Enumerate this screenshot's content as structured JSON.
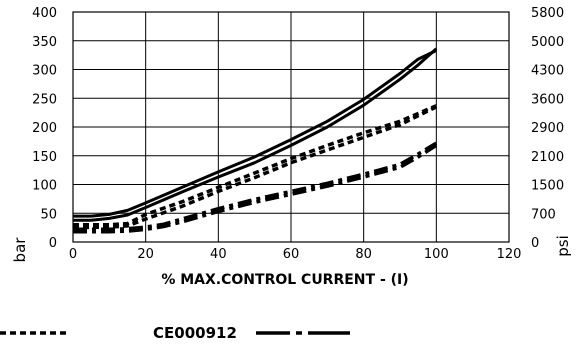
{
  "chart_data": {
    "type": "line",
    "xlabel": "% MAX.CONTROL CURRENT - (I)",
    "ylabel_left": "bar",
    "ylabel_right": "psi",
    "xlim": [
      0,
      120
    ],
    "ylim_left": [
      0,
      400
    ],
    "x_ticks": [
      "0",
      "20",
      "40",
      "60",
      "80",
      "100",
      "120"
    ],
    "y_ticks_left": [
      "0",
      "50",
      "100",
      "150",
      "200",
      "250",
      "300",
      "350",
      "400"
    ],
    "y_ticks_right": [
      "0",
      "700",
      "1500",
      "2100",
      "2900",
      "3600",
      "4300",
      "5000",
      "5800"
    ],
    "grid": true,
    "series": [
      {
        "style": "solid",
        "x": [
          0,
          5,
          10,
          15,
          20,
          30,
          40,
          50,
          60,
          70,
          80,
          90,
          95,
          100
        ],
        "y": [
          45,
          45,
          48,
          55,
          68,
          95,
          122,
          148,
          178,
          210,
          248,
          293,
          318,
          333
        ]
      },
      {
        "style": "solid",
        "x": [
          0,
          5,
          10,
          15,
          20,
          30,
          40,
          50,
          60,
          70,
          80,
          90,
          95,
          100
        ],
        "y": [
          38,
          38,
          41,
          47,
          60,
          87,
          113,
          138,
          168,
          200,
          238,
          283,
          308,
          336
        ]
      },
      {
        "style": "dashed",
        "x": [
          0,
          10,
          15,
          20,
          30,
          40,
          50,
          60,
          70,
          80,
          90,
          100
        ],
        "y": [
          30,
          30,
          32,
          48,
          70,
          95,
          120,
          145,
          168,
          190,
          210,
          237
        ]
      },
      {
        "style": "dashed",
        "x": [
          0,
          10,
          15,
          20,
          30,
          40,
          50,
          60,
          70,
          80,
          90,
          100
        ],
        "y": [
          25,
          26,
          28,
          40,
          62,
          88,
          112,
          138,
          160,
          182,
          204,
          235
        ]
      },
      {
        "style": "dashdot",
        "x": [
          0,
          10,
          15,
          20,
          25,
          30,
          40,
          50,
          60,
          70,
          80,
          90,
          95,
          100
        ],
        "y": [
          22,
          22,
          23,
          26,
          31,
          40,
          58,
          74,
          88,
          102,
          118,
          135,
          153,
          172
        ]
      },
      {
        "style": "dashdot",
        "x": [
          0,
          10,
          15,
          20,
          25,
          30,
          40,
          50,
          60,
          70,
          80,
          90,
          95,
          100
        ],
        "y": [
          18,
          18,
          19,
          22,
          27,
          35,
          53,
          69,
          83,
          97,
          113,
          130,
          148,
          168
        ]
      }
    ],
    "legend": {
      "code": "CE000912"
    }
  }
}
